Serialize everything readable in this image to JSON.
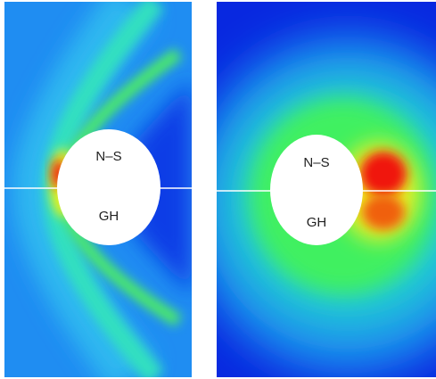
{
  "panels": [
    {
      "labels": [
        "N–S",
        "GH"
      ]
    },
    {
      "labels": [
        "N–S",
        "GH"
      ]
    }
  ]
}
